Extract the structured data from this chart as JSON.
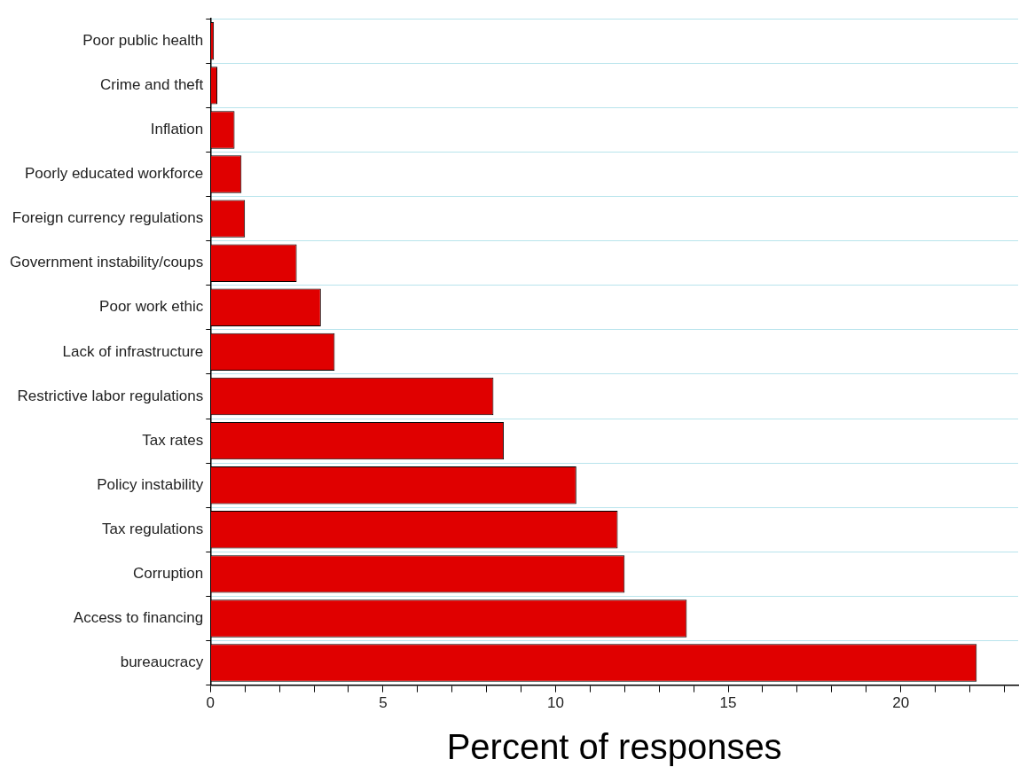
{
  "chart_data": {
    "type": "bar",
    "orientation": "horizontal",
    "xlabel": "Percent of responses",
    "categories": [
      "Poor public health",
      "Crime and theft",
      "Inflation",
      "Poorly educated workforce",
      "Foreign currency regulations",
      "Government instability/coups",
      "Poor work ethic",
      "Lack of infrastructure",
      "Restrictive labor regulations",
      "Tax rates",
      "Policy instability",
      "Tax regulations",
      "Corruption",
      "Access to financing",
      "bureaucracy"
    ],
    "values": [
      0.1,
      0.2,
      0.7,
      0.9,
      1.0,
      2.5,
      3.2,
      3.6,
      8.2,
      8.5,
      10.6,
      11.8,
      12.0,
      13.8,
      22.2
    ],
    "color": "#e00000",
    "xlim": [
      0,
      23.4
    ],
    "xticks": [
      0,
      {
        "value": 1,
        "label": null
      },
      {
        "value": 2,
        "label": null
      },
      {
        "value": 3,
        "label": null
      },
      {
        "value": 4,
        "label": null
      },
      5,
      {
        "value": 6,
        "label": null
      },
      {
        "value": 7,
        "label": null
      },
      {
        "value": 8,
        "label": null
      },
      {
        "value": 9,
        "label": null
      },
      10,
      {
        "value": 11,
        "label": null
      },
      {
        "value": 12,
        "label": null
      },
      {
        "value": 13,
        "label": null
      },
      {
        "value": 14,
        "label": null
      },
      15,
      {
        "value": 16,
        "label": null
      },
      {
        "value": 17,
        "label": null
      },
      {
        "value": 18,
        "label": null
      },
      {
        "value": 19,
        "label": null
      },
      20,
      {
        "value": 21,
        "label": null
      },
      {
        "value": 22,
        "label": null
      },
      {
        "value": 23,
        "label": null
      }
    ],
    "grid": "y",
    "legend": false
  }
}
